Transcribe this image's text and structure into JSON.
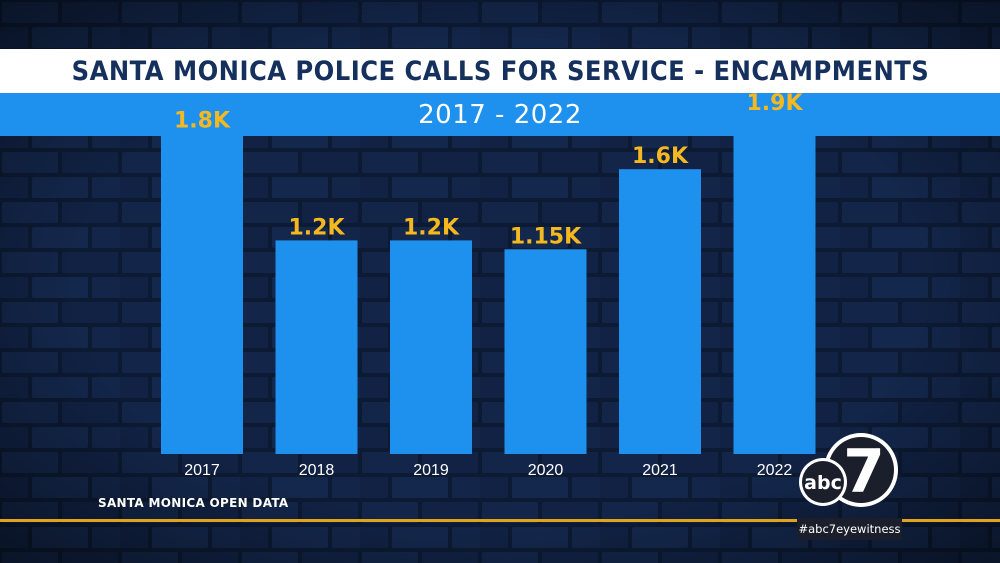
{
  "header": {
    "title": "SANTA MONICA POLICE CALLS FOR SERVICE - ENCAMPMENTS",
    "subtitle": "2017 - 2022"
  },
  "chart_data": {
    "type": "bar",
    "title": "SANTA MONICA POLICE CALLS FOR SERVICE - ENCAMPMENTS",
    "subtitle": "2017 - 2022",
    "categories": [
      "2017",
      "2018",
      "2019",
      "2020",
      "2021",
      "2022"
    ],
    "values": [
      1800,
      1200,
      1200,
      1150,
      1600,
      1900
    ],
    "data_labels": [
      "1.8K",
      "1.2K",
      "1.2K",
      "1.15K",
      "1.6K",
      "1.9K"
    ],
    "xlabel": "",
    "ylabel": "",
    "ylim": [
      0,
      2000
    ],
    "grid": false,
    "legend": "none",
    "bar_color": "#1e90ee",
    "label_color": "#f5b820"
  },
  "footer": {
    "source": "SANTA MONICA OPEN DATA",
    "hashtag": "#abc7eyewitness",
    "logo_text": "abc",
    "logo_number": "7"
  },
  "colors": {
    "background": "#0c1a33",
    "accent_blue": "#1e90ee",
    "title_navy": "#16305e",
    "gold": "#e0a41c"
  }
}
